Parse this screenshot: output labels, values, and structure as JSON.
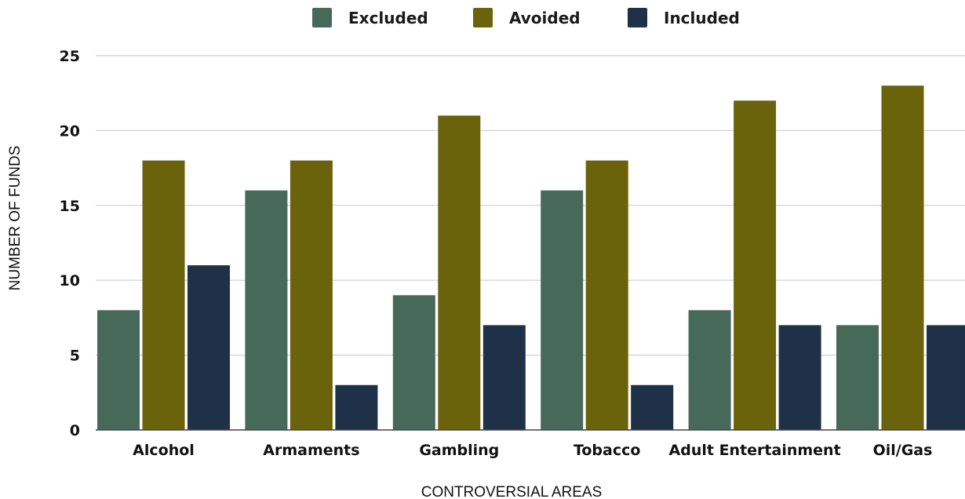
{
  "chart_data": {
    "type": "bar",
    "title": "",
    "xlabel": "CONTROVERSIAL AREAS",
    "ylabel": "NUMBER OF FUNDS",
    "categories": [
      "Alcohol",
      "Armaments",
      "Gambling",
      "Tobacco",
      "Adult Entertainment",
      "Oil/Gas"
    ],
    "series": [
      {
        "name": "Excluded",
        "color": "#46695a",
        "values": [
          8,
          16,
          9,
          16,
          8,
          7
        ]
      },
      {
        "name": "Avoided",
        "color": "#6b620c",
        "values": [
          18,
          18,
          21,
          18,
          22,
          23
        ]
      },
      {
        "name": "Included",
        "color": "#1e3148",
        "values": [
          11,
          3,
          7,
          3,
          7,
          7
        ]
      }
    ],
    "ylim": [
      0,
      25
    ],
    "yticks": [
      0,
      5,
      10,
      15,
      20,
      25
    ],
    "grid": true,
    "legend_position": "top-center"
  }
}
